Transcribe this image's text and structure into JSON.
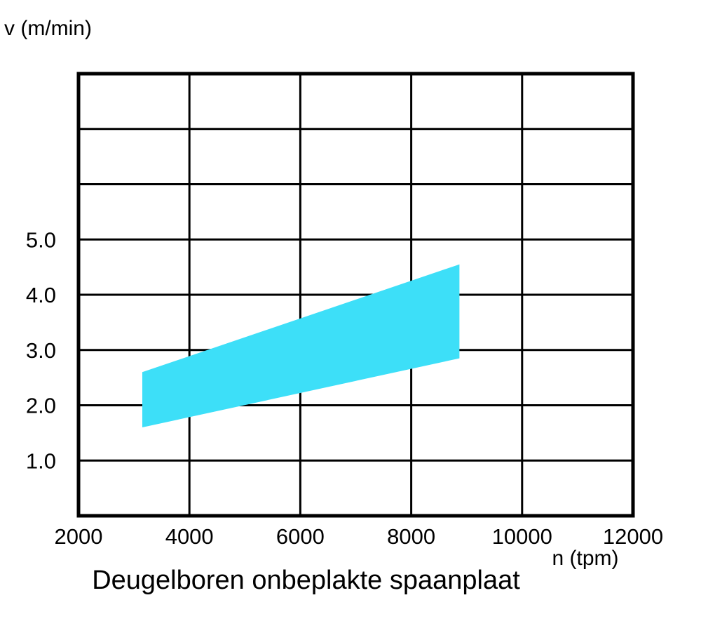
{
  "page": {
    "background_color": "#FFFFFF",
    "text_color": "#000000"
  },
  "chart_data": {
    "type": "area",
    "title": "Deugelboren onbeplakte spaanplaat",
    "xlabel": "n (tpm)",
    "ylabel": "v (m/min)",
    "xlim": [
      2000,
      12000
    ],
    "ylim": [
      0,
      8
    ],
    "grid": "on",
    "legend": "none",
    "frame_color": "#000000",
    "grid_color": "#000000",
    "x_ticks": [
      2000,
      4000,
      6000,
      8000,
      10000,
      12000
    ],
    "x_tick_labels": [
      "2000",
      "4000",
      "6000",
      "8000",
      "10000",
      "12000"
    ],
    "y_grid_values": [
      1,
      2,
      3,
      4,
      5,
      6,
      7
    ],
    "y_tick_labels": [
      {
        "v": 5,
        "label": "5.0"
      },
      {
        "v": 4,
        "label": "4.0"
      },
      {
        "v": 3,
        "label": "3.0"
      },
      {
        "v": 2,
        "label": "2.0"
      },
      {
        "v": 1,
        "label": "1.0"
      }
    ],
    "band": {
      "fill_color": "#3DDFF8",
      "x": [
        3150,
        8870
      ],
      "v_upper": [
        2.6,
        4.55
      ],
      "v_lower": [
        1.6,
        2.85
      ]
    }
  }
}
